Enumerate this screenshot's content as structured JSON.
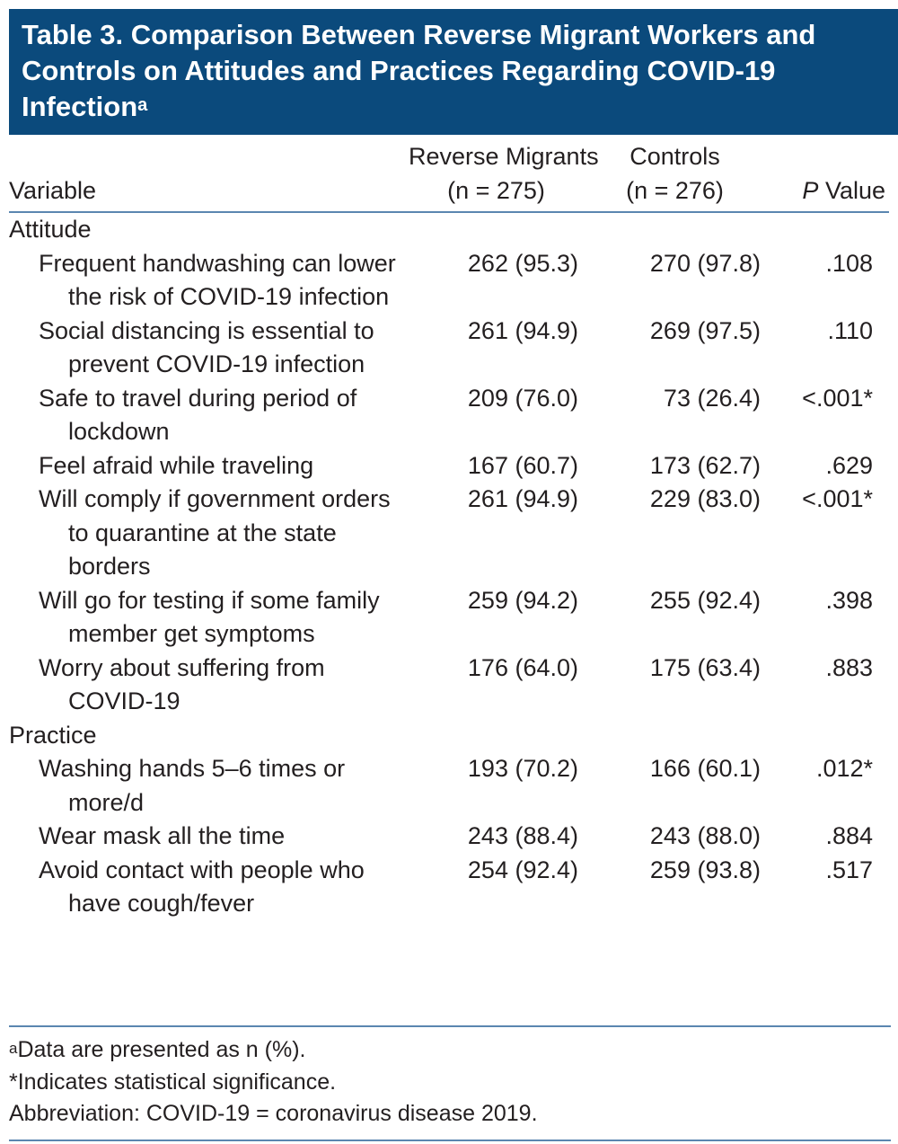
{
  "title": {
    "text": "Table 3. Comparison Between Reverse Migrant Workers and Controls on Attitudes and Practices Regarding COVID-19 Infection",
    "sup": "a"
  },
  "header": {
    "variable": "Variable",
    "migrants": {
      "line1": "Reverse Migrants",
      "line2": "(n = 275)"
    },
    "controls": {
      "line1": "Controls",
      "line2": "(n = 276)"
    },
    "p_value": {
      "italic": "P",
      "text": "Value"
    }
  },
  "sections": [
    {
      "name": "Attitude",
      "rows": [
        {
          "label": "Frequent handwashing can lower the risk of COVID-19 infection",
          "migrants": "262 (95.3)",
          "controls": "270 (97.8)",
          "p": ".108"
        },
        {
          "label": "Social distancing is essential to prevent COVID-19 infection",
          "migrants": "261 (94.9)",
          "controls": "269 (97.5)",
          "p": ".110"
        },
        {
          "label": "Safe to travel during period of lockdown",
          "migrants": "209 (76.0)",
          "controls": "73 (26.4)",
          "p": "<.001*"
        },
        {
          "label": "Feel afraid while traveling",
          "migrants": "167 (60.7)",
          "controls": "173 (62.7)",
          "p": ".629"
        },
        {
          "label": "Will comply if government orders to quarantine at the state borders",
          "migrants": "261 (94.9)",
          "controls": "229 (83.0)",
          "p": "<.001*"
        },
        {
          "label": "Will go for testing if some family member get symptoms",
          "migrants": "259 (94.2)",
          "controls": "255 (92.4)",
          "p": ".398"
        },
        {
          "label": "Worry about suffering from COVID-19",
          "migrants": "176 (64.0)",
          "controls": "175 (63.4)",
          "p": ".883"
        }
      ]
    },
    {
      "name": "Practice",
      "rows": [
        {
          "label": "Washing hands 5–6 times or more/d",
          "migrants": "193 (70.2)",
          "controls": "166 (60.1)",
          "p": ".012*"
        },
        {
          "label": "Wear mask all the time",
          "migrants": "243 (88.4)",
          "controls": "243 (88.0)",
          "p": ".884"
        },
        {
          "label": "Avoid contact with people who have cough/fever",
          "migrants": "254 (92.4)",
          "controls": "259 (93.8)",
          "p": ".517"
        }
      ]
    }
  ],
  "footnotes": {
    "sup": "a",
    "note_a": "Data are presented as n (%).",
    "significance": "*Indicates statistical significance.",
    "abbreviation": "Abbreviation: COVID-19 = coronavirus disease 2019."
  }
}
